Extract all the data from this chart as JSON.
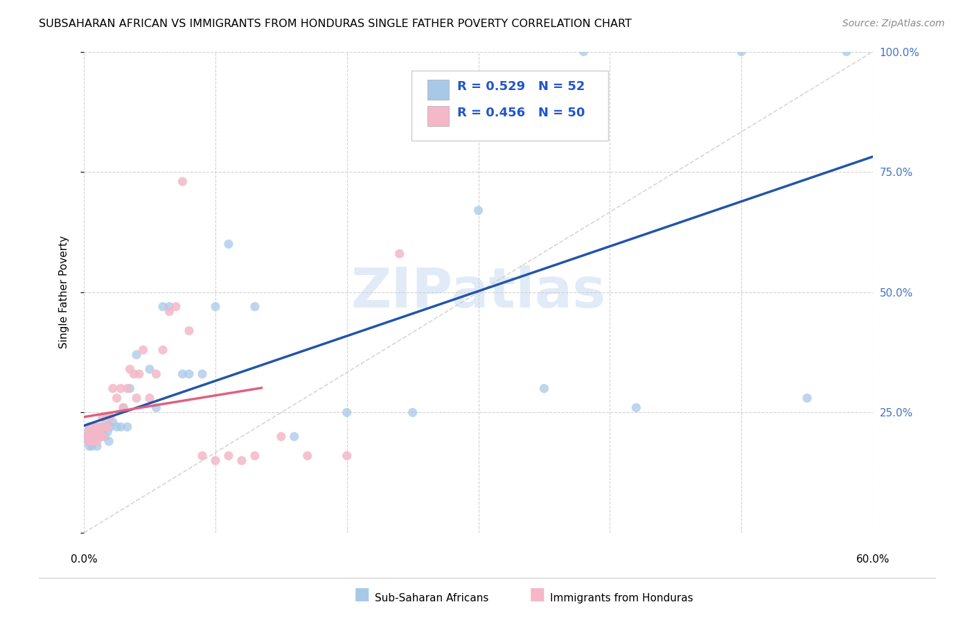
{
  "title": "SUBSAHARAN AFRICAN VS IMMIGRANTS FROM HONDURAS SINGLE FATHER POVERTY CORRELATION CHART",
  "source": "Source: ZipAtlas.com",
  "ylabel": "Single Father Poverty",
  "R1": 0.529,
  "N1": 52,
  "R2": 0.456,
  "N2": 50,
  "color1": "#a8c8e8",
  "color2": "#f4b8c8",
  "line1_color": "#2255aa",
  "line2_color": "#e06080",
  "diag_color": "#cccccc",
  "watermark_color": "#c5d8f0",
  "legend1_label": "Sub-Saharan Africans",
  "legend2_label": "Immigrants from Honduras",
  "xlim": [
    0.0,
    0.6
  ],
  "ylim": [
    0.0,
    1.0
  ],
  "xticks": [
    0.0,
    0.1,
    0.2,
    0.3,
    0.4,
    0.5,
    0.6
  ],
  "yticks": [
    0.0,
    0.25,
    0.5,
    0.75,
    1.0
  ],
  "scatter1_x": [
    0.002,
    0.003,
    0.003,
    0.004,
    0.004,
    0.005,
    0.005,
    0.006,
    0.006,
    0.007,
    0.007,
    0.008,
    0.009,
    0.01,
    0.01,
    0.011,
    0.012,
    0.013,
    0.014,
    0.015,
    0.016,
    0.017,
    0.018,
    0.019,
    0.02,
    0.022,
    0.025,
    0.028,
    0.03,
    0.033,
    0.035,
    0.04,
    0.05,
    0.055,
    0.06,
    0.065,
    0.075,
    0.08,
    0.09,
    0.1,
    0.11,
    0.13,
    0.16,
    0.2,
    0.25,
    0.3,
    0.35,
    0.38,
    0.42,
    0.5,
    0.55,
    0.58
  ],
  "scatter1_y": [
    0.2,
    0.19,
    0.21,
    0.18,
    0.22,
    0.2,
    0.19,
    0.22,
    0.18,
    0.21,
    0.19,
    0.2,
    0.22,
    0.18,
    0.21,
    0.2,
    0.22,
    0.2,
    0.21,
    0.22,
    0.2,
    0.23,
    0.21,
    0.19,
    0.22,
    0.23,
    0.22,
    0.22,
    0.26,
    0.22,
    0.3,
    0.37,
    0.34,
    0.26,
    0.47,
    0.47,
    0.33,
    0.33,
    0.33,
    0.47,
    0.6,
    0.47,
    0.2,
    0.25,
    0.25,
    0.67,
    0.3,
    1.0,
    0.26,
    1.0,
    0.28,
    1.0
  ],
  "scatter2_x": [
    0.002,
    0.003,
    0.004,
    0.004,
    0.005,
    0.005,
    0.006,
    0.006,
    0.007,
    0.007,
    0.008,
    0.008,
    0.009,
    0.01,
    0.01,
    0.011,
    0.012,
    0.013,
    0.014,
    0.015,
    0.016,
    0.017,
    0.018,
    0.02,
    0.022,
    0.025,
    0.028,
    0.03,
    0.033,
    0.035,
    0.038,
    0.04,
    0.042,
    0.045,
    0.05,
    0.055,
    0.06,
    0.065,
    0.07,
    0.075,
    0.08,
    0.09,
    0.1,
    0.11,
    0.12,
    0.13,
    0.15,
    0.17,
    0.2,
    0.24
  ],
  "scatter2_y": [
    0.2,
    0.2,
    0.19,
    0.21,
    0.2,
    0.22,
    0.19,
    0.21,
    0.2,
    0.22,
    0.19,
    0.2,
    0.22,
    0.19,
    0.2,
    0.21,
    0.2,
    0.22,
    0.24,
    0.2,
    0.22,
    0.24,
    0.22,
    0.24,
    0.3,
    0.28,
    0.3,
    0.26,
    0.3,
    0.34,
    0.33,
    0.28,
    0.33,
    0.38,
    0.28,
    0.33,
    0.38,
    0.46,
    0.47,
    0.73,
    0.42,
    0.16,
    0.15,
    0.16,
    0.15,
    0.16,
    0.2,
    0.16,
    0.16,
    0.58
  ],
  "line1_x_start": 0.0,
  "line1_x_end": 0.6,
  "line2_x_start": 0.0,
  "line2_x_end": 0.135
}
